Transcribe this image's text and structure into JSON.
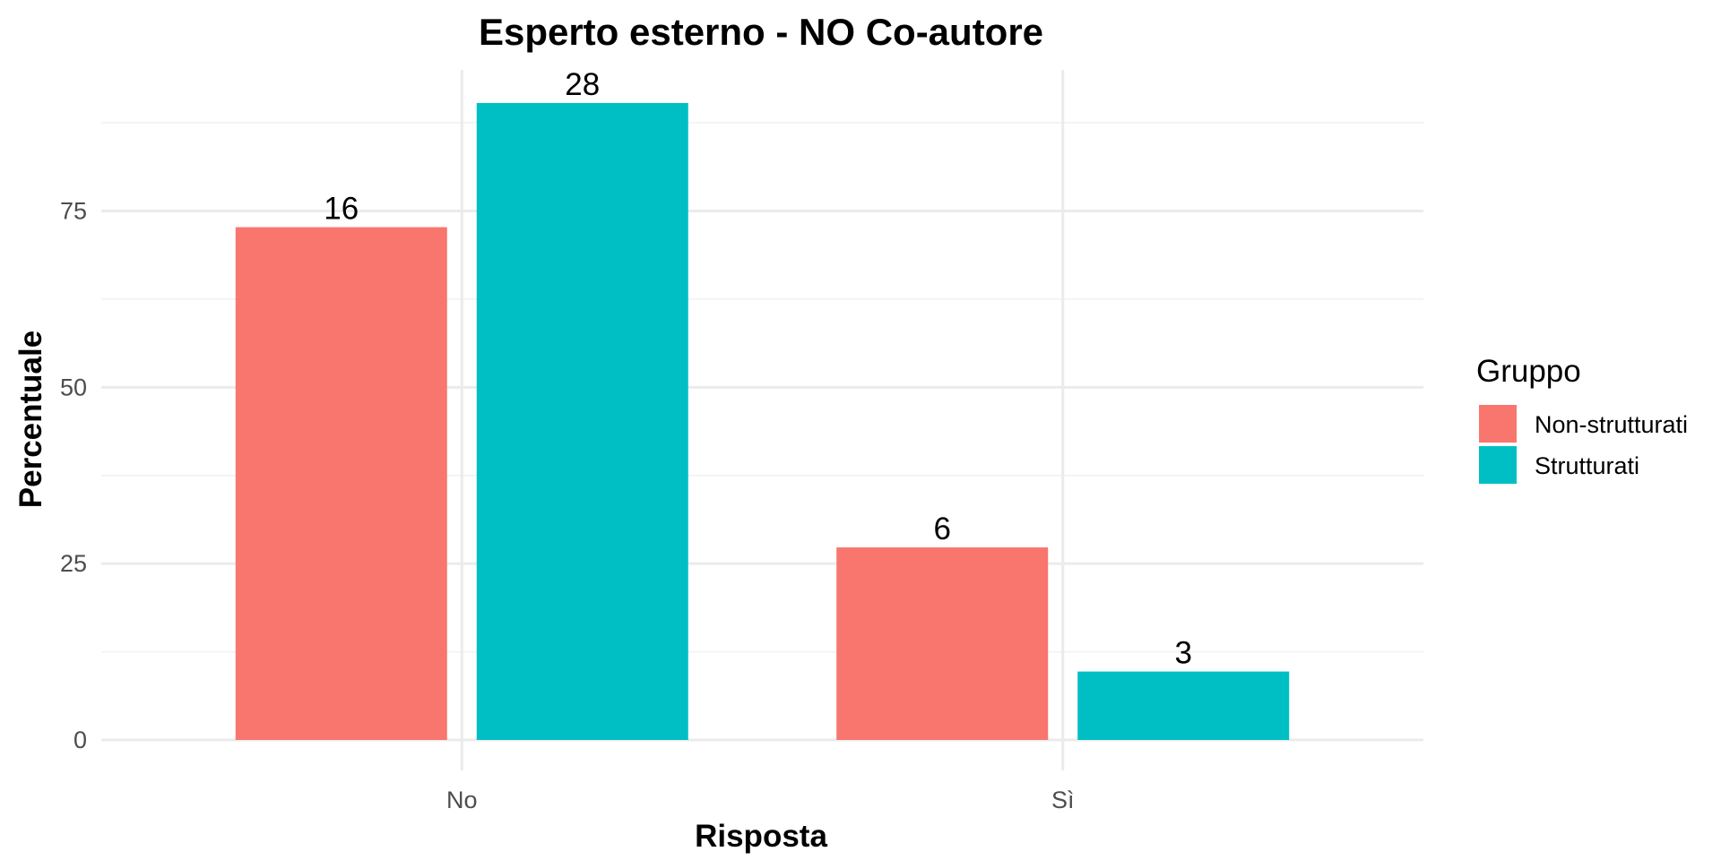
{
  "chart_data": {
    "type": "bar",
    "title": "Esperto esterno - NO Co-autore",
    "xlabel": "Risposta",
    "ylabel": "Percentuale",
    "categories": [
      "No",
      "Sì"
    ],
    "series": [
      {
        "name": "Non-strutturati",
        "color": "#F8766D",
        "values": [
          72.7,
          27.3
        ],
        "labels": [
          "16",
          "6"
        ]
      },
      {
        "name": "Strutturati",
        "color": "#00BFC4",
        "values": [
          90.3,
          9.7
        ],
        "labels": [
          "28",
          "3"
        ]
      }
    ],
    "ylim": [
      0,
      95
    ],
    "yticks": [
      0,
      25,
      50,
      75
    ],
    "ytick_labels": [
      "0",
      "25",
      "50",
      "75"
    ],
    "grid": true,
    "legend": {
      "title": "Gruppo",
      "position": "right"
    }
  }
}
